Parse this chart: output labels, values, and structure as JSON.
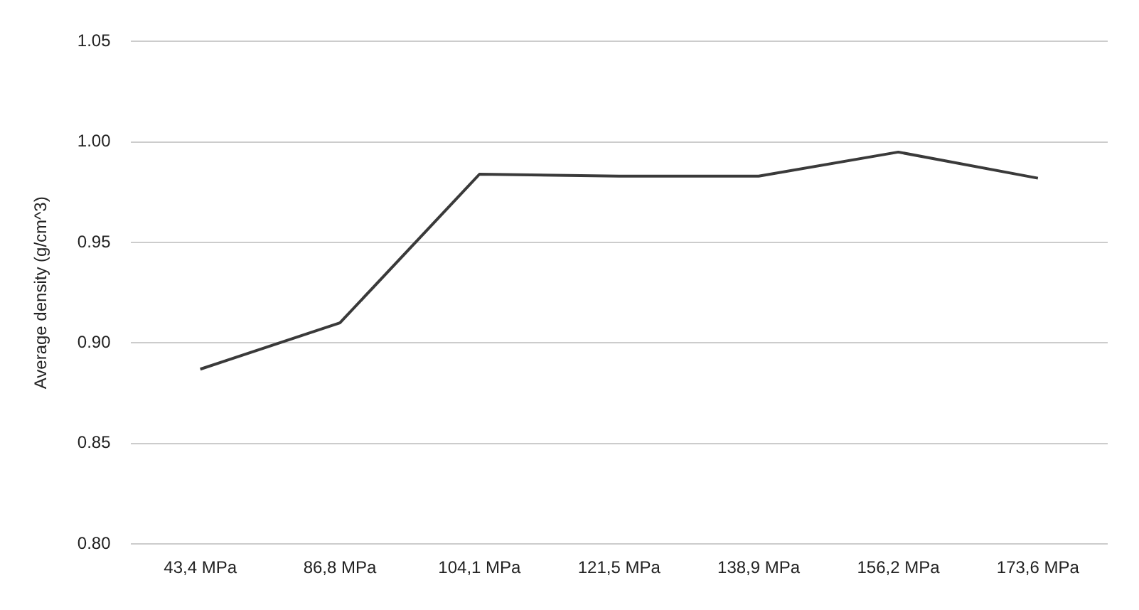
{
  "chart_data": {
    "type": "line",
    "ylabel": "Average density (g/cm^3)",
    "categories": [
      "43,4 MPa",
      "86,8 MPa",
      "104,1 MPa",
      "121,5 MPa",
      "138,9 MPa",
      "156,2 MPa",
      "173,6 MPa"
    ],
    "series": [
      {
        "color": "#3a3a3a",
        "values": [
          0.887,
          0.91,
          0.984,
          0.983,
          0.983,
          0.995,
          0.982
        ]
      }
    ],
    "ylim": [
      0.8,
      1.05
    ],
    "yticks": [
      {
        "value": 0.8,
        "label": "0.80"
      },
      0.85,
      {
        "value": 0.9,
        "label": "0.90"
      },
      0.95,
      {
        "value": 1.0,
        "label": "1.00"
      },
      1.05
    ],
    "grid": "y",
    "legend": false,
    "marker": "none",
    "line_style": "solid"
  }
}
